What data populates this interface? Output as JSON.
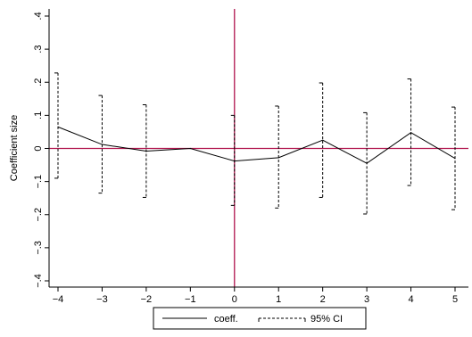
{
  "chart_data": {
    "type": "line",
    "title": "",
    "xlabel": "",
    "ylabel": "Coefficient size",
    "x": [
      -4,
      -3,
      -2,
      -1,
      0,
      1,
      2,
      3,
      4,
      5
    ],
    "xlim": [
      -4,
      5
    ],
    "ylim": [
      -0.4,
      0.4
    ],
    "x_ticks": [
      -4,
      -3,
      -2,
      -1,
      0,
      1,
      2,
      3,
      4,
      5
    ],
    "x_tick_labels": [
      "−4",
      "−3",
      "−2",
      "−1",
      "0",
      "1",
      "2",
      "3",
      "4",
      "5"
    ],
    "y_ticks": [
      -0.4,
      -0.3,
      -0.2,
      -0.1,
      0,
      0.1,
      0.2,
      0.3,
      0.4
    ],
    "y_tick_labels": [
      "−.4",
      "−.3",
      "−.2",
      "−.1",
      "0",
      ".1",
      ".2",
      ".3",
      ".4"
    ],
    "series": [
      {
        "name": "coeff.",
        "style": "solid",
        "color": "#000000",
        "values": [
          0.065,
          0.012,
          -0.008,
          0.0,
          -0.038,
          -0.028,
          0.025,
          -0.045,
          0.048,
          -0.03
        ]
      },
      {
        "name": "95% CI",
        "style": "dashed-capped-range",
        "color": "#000000",
        "lower": [
          -0.09,
          -0.135,
          -0.148,
          null,
          -0.172,
          -0.18,
          -0.148,
          -0.198,
          -0.112,
          -0.185
        ],
        "upper": [
          0.228,
          0.16,
          0.132,
          null,
          0.1,
          0.128,
          0.198,
          0.108,
          0.21,
          0.125
        ]
      }
    ],
    "reference_lines": {
      "horizontal_y": 0,
      "vertical_x": 0,
      "color": "#b0134d"
    },
    "grid": false,
    "legend": {
      "position": "bottom",
      "entries": [
        "coeff.",
        "95% CI"
      ]
    }
  }
}
